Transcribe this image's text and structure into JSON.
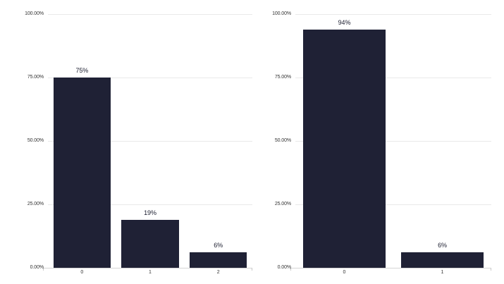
{
  "figure": {
    "background": "#ffffff"
  },
  "colors": {
    "bar": "#1f2135",
    "gridline": "#e9e9e9",
    "axis_line": "#d5d5d5",
    "axis_tick": "#c9c9c9",
    "y_tick_label": "#333333",
    "x_tick_label": "#333333",
    "value_label": "#1a1c2e"
  },
  "chart_data": [
    {
      "type": "bar",
      "title": "",
      "xlabel": "",
      "ylabel": "",
      "categories": [
        "0",
        "1",
        "2"
      ],
      "values": [
        75,
        19,
        6
      ],
      "value_labels": [
        "75%",
        "19%",
        "6%"
      ],
      "y_ticks": [
        "0.00%",
        "25.00%",
        "50.00%",
        "75.00%",
        "100.00%"
      ],
      "y_tick_values": [
        0,
        25,
        50,
        75,
        100
      ],
      "ylim": [
        0,
        100
      ],
      "grid": true,
      "legend": "none"
    },
    {
      "type": "bar",
      "title": "",
      "xlabel": "",
      "ylabel": "",
      "categories": [
        "0",
        "1"
      ],
      "values": [
        94,
        6
      ],
      "value_labels": [
        "94%",
        "6%"
      ],
      "y_ticks": [
        "0.00%",
        "25.00%",
        "50.00%",
        "75.00%",
        "100.00%"
      ],
      "y_tick_values": [
        0,
        25,
        50,
        75,
        100
      ],
      "ylim": [
        0,
        100
      ],
      "grid": true,
      "legend": "none"
    }
  ]
}
